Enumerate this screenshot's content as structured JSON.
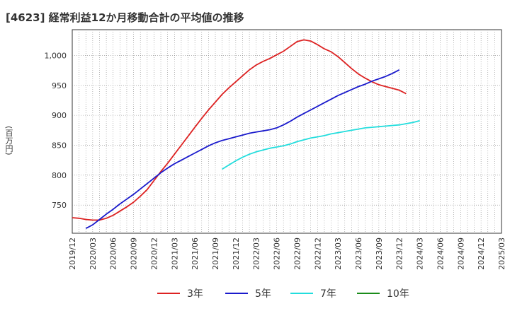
{
  "chart_data": {
    "type": "line",
    "title": "[4623]  経常利益12か月移動合計の平均値の推移",
    "ylabel": "(百万円)",
    "ylim": [
      703,
      1043
    ],
    "yticks": [
      750,
      800,
      850,
      900,
      950,
      1000
    ],
    "ytick_labels": [
      "750",
      "800",
      "850",
      "900",
      "950",
      "1,000"
    ],
    "xticks": [
      "2019/12",
      "2020/03",
      "2020/06",
      "2020/09",
      "2020/12",
      "2021/03",
      "2021/06",
      "2021/09",
      "2021/12",
      "2022/03",
      "2022/06",
      "2022/09",
      "2022/12",
      "2023/03",
      "2023/06",
      "2023/09",
      "2023/12",
      "2024/03",
      "2024/06",
      "2024/09",
      "2024/12",
      "2025/03"
    ],
    "grid": true,
    "legend_position": "bottom",
    "series": [
      {
        "name": "3年",
        "color": "#dd2222",
        "start_index": 0,
        "values": [
          729,
          728,
          726,
          725,
          725,
          728,
          733,
          740,
          747,
          755,
          765,
          776,
          791,
          806,
          820,
          835,
          850,
          865,
          880,
          895,
          909,
          922,
          935,
          946,
          956,
          966,
          976,
          984,
          990,
          995,
          1001,
          1007,
          1015,
          1023,
          1026,
          1024,
          1018,
          1011,
          1006,
          998,
          988,
          978,
          969,
          962,
          956,
          951,
          948,
          945,
          942,
          936
        ]
      },
      {
        "name": "5年",
        "color": "#1a1acc",
        "start_index": 2,
        "values": [
          711,
          717,
          726,
          735,
          743,
          752,
          760,
          768,
          777,
          786,
          795,
          804,
          812,
          819,
          825,
          831,
          837,
          843,
          849,
          854,
          858,
          861,
          864,
          867,
          870,
          872,
          874,
          876,
          879,
          884,
          890,
          897,
          903,
          909,
          915,
          921,
          927,
          933,
          938,
          943,
          948,
          952,
          957,
          961,
          965,
          970,
          976
        ]
      },
      {
        "name": "7年",
        "color": "#22dddd",
        "start_index": 22,
        "values": [
          810,
          817,
          824,
          830,
          835,
          839,
          842,
          845,
          847,
          849,
          852,
          856,
          859,
          862,
          864,
          866,
          869,
          871,
          873,
          875,
          877,
          879,
          880,
          881,
          882,
          883,
          884,
          886,
          888,
          891
        ]
      },
      {
        "name": "10年",
        "color": "#1a8c1a",
        "start_index": 0,
        "values": []
      }
    ]
  }
}
